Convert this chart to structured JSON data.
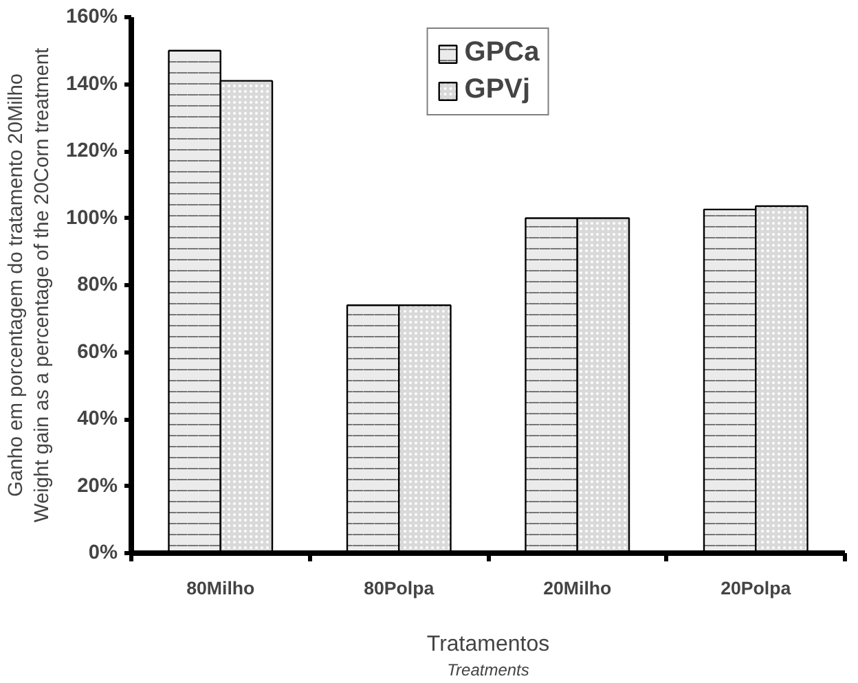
{
  "chart_data": {
    "type": "bar",
    "categories": [
      "80Milho",
      "80Polpa",
      "20Milho",
      "20Polpa"
    ],
    "series": [
      {
        "name": "GPCa",
        "color": "#ebebeb",
        "values": [
          150,
          74,
          100,
          102.6
        ]
      },
      {
        "name": "GPVj",
        "color": "#d9d9d9",
        "values": [
          141,
          74,
          100,
          103.6
        ]
      }
    ],
    "xlabel": "Tratamentos\nTreatments",
    "ylabel": "Ganho em porcentagem do tratamento 20Milho\nWeight gain as a percentage of the 20Corn treatment",
    "ylim": [
      0,
      160
    ],
    "yticks": [
      {
        "value": 0,
        "label": "0%"
      },
      {
        "value": 20,
        "label": "20%"
      },
      {
        "value": 40,
        "label": "40%"
      },
      {
        "value": 60,
        "label": "60%"
      },
      {
        "value": 80,
        "label": "80%"
      },
      {
        "value": 100,
        "label": "100%"
      },
      {
        "value": 120,
        "label": "120%"
      },
      {
        "value": 140,
        "label": "140%"
      },
      {
        "value": 160,
        "label": "160%"
      }
    ],
    "legend": "top",
    "grid": false
  }
}
